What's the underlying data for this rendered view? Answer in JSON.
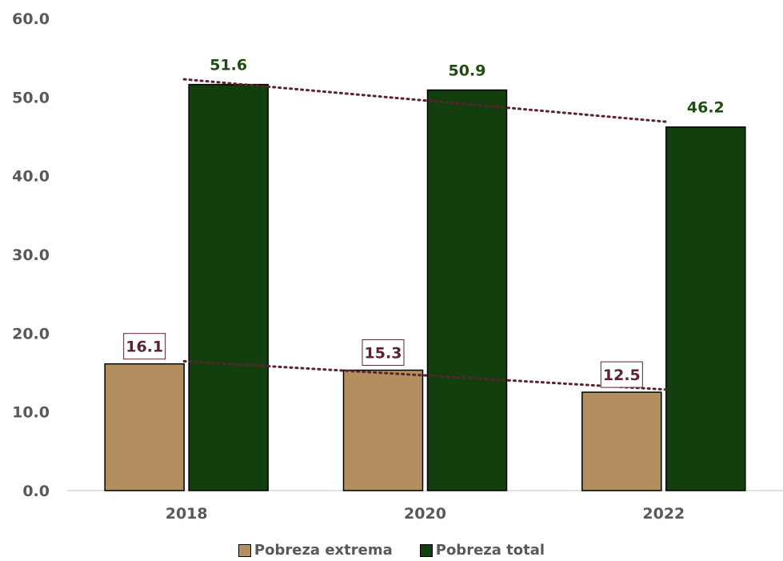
{
  "chart_data": {
    "type": "bar",
    "categories": [
      "2018",
      "2020",
      "2022"
    ],
    "series": [
      {
        "name": "Pobreza extrema",
        "values": [
          16.1,
          15.3,
          12.5
        ],
        "color": "#B38F5F",
        "label_color": "#5C2230",
        "labels": [
          "16.1",
          "15.3",
          "12.5"
        ],
        "trendline": "dotted"
      },
      {
        "name": "Pobreza total",
        "values": [
          51.6,
          50.9,
          46.2
        ],
        "color": "#133F0E",
        "label_color": "#1F4D12",
        "labels": [
          "51.6",
          "50.9",
          "46.2"
        ],
        "trendline": "dotted"
      }
    ],
    "ylim": [
      0,
      60
    ],
    "yticks": [
      "0.0",
      "10.0",
      "20.0",
      "30.0",
      "40.0",
      "50.0",
      "60.0"
    ],
    "trendline_color": "#5C2230",
    "legend": "bottom",
    "grid": false
  }
}
